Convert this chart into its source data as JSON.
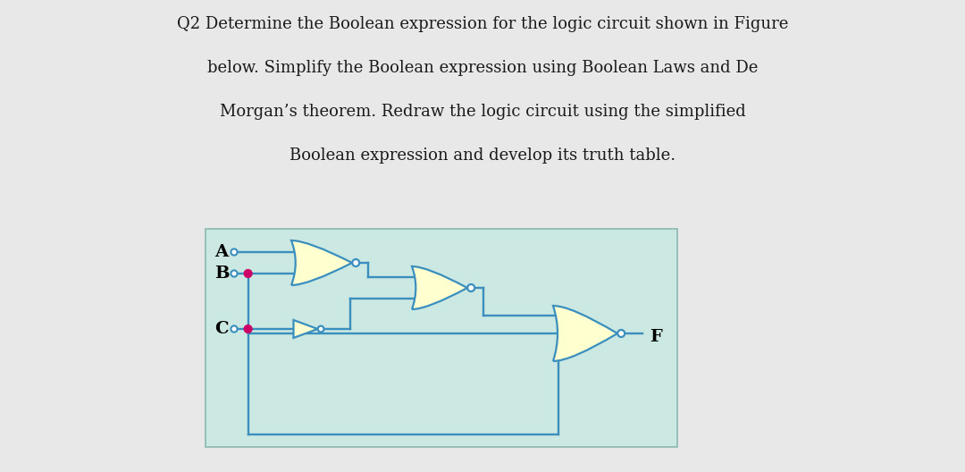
{
  "bg_color": "#e8e8e8",
  "circuit_bg": "#cce8e2",
  "circuit_border": "#90bcb4",
  "wire_color": "#3a8fbe",
  "gate_fill": "#ffffd0",
  "gate_stroke": "#3a8fbe",
  "dot_color": "#cc0066",
  "label_color": "#1a1a1a",
  "text_lines": [
    "Q2 Determine the Boolean expression for the logic circuit shown in Figure",
    "below. Simplify the Boolean expression using Boolean Laws and De",
    "Morgan’s theorem. Redraw the logic circuit using the simplified",
    "Boolean expression and develop its truth table."
  ],
  "inputs": [
    "A",
    "B",
    "C"
  ],
  "output_label": "F"
}
